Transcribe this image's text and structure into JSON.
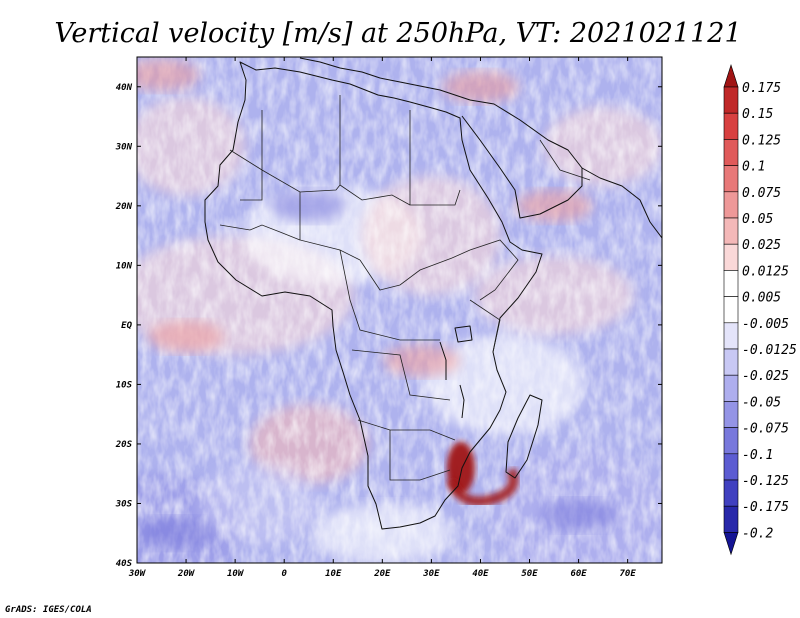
{
  "chart_data": {
    "type": "heatmap",
    "title": "Vertical velocity [m/s] at 250hPa, VT: 2021021121",
    "variable": "Vertical velocity",
    "units": "m/s",
    "level": "250hPa",
    "valid_time": "2021021121",
    "xlim": [
      -30,
      77
    ],
    "ylim": [
      -40,
      45
    ],
    "x_ticks": [
      {
        "value": -30,
        "label": "30W"
      },
      {
        "value": -20,
        "label": "20W"
      },
      {
        "value": -10,
        "label": "10W"
      },
      {
        "value": 0,
        "label": "0"
      },
      {
        "value": 10,
        "label": "10E"
      },
      {
        "value": 20,
        "label": "20E"
      },
      {
        "value": 30,
        "label": "30E"
      },
      {
        "value": 40,
        "label": "40E"
      },
      {
        "value": 50,
        "label": "50E"
      },
      {
        "value": 60,
        "label": "60E"
      },
      {
        "value": 70,
        "label": "70E"
      }
    ],
    "y_ticks": [
      {
        "value": 40,
        "label": "40N"
      },
      {
        "value": 30,
        "label": "30N"
      },
      {
        "value": 20,
        "label": "20N"
      },
      {
        "value": 10,
        "label": "10N"
      },
      {
        "value": 0,
        "label": "EQ"
      },
      {
        "value": -10,
        "label": "10S"
      },
      {
        "value": -20,
        "label": "20S"
      },
      {
        "value": -30,
        "label": "30S"
      },
      {
        "value": -40,
        "label": "40S"
      }
    ],
    "colorbar": {
      "levels": [
        "0.175",
        "0.15",
        "0.125",
        "0.1",
        "0.075",
        "0.05",
        "0.025",
        "0.0125",
        "0.005",
        "-0.005",
        "-0.0125",
        "-0.025",
        "-0.05",
        "-0.075",
        "-0.1",
        "-0.125",
        "-0.175",
        "-0.2"
      ],
      "colors": [
        "#a01414",
        "#c02828",
        "#d84040",
        "#e05a5a",
        "#e87878",
        "#ee9898",
        "#f4b8b8",
        "#fad8d8",
        "#ffffff",
        "#e4e4fa",
        "#c8c8f4",
        "#aeaeee",
        "#9494e6",
        "#7878dc",
        "#5c5cd2",
        "#4040c0",
        "#2828aa",
        "#141494"
      ]
    },
    "features": [
      {
        "name": "strong ascent south-east Africa / Mozambique Channel",
        "lon": 36,
        "lat": -24,
        "sign": "positive"
      },
      {
        "name": "ascent band over Arabian Sea",
        "lon": 55,
        "lat": 20,
        "sign": "positive"
      },
      {
        "name": "ascent over Mediterranean / Levant",
        "lon": 40,
        "lat": 40,
        "sign": "positive"
      },
      {
        "name": "ascent over NW Atlantic",
        "lon": -25,
        "lat": 42,
        "sign": "positive"
      },
      {
        "name": "ascent streak off Angola coast",
        "lon": -20,
        "lat": -2,
        "sign": "positive"
      },
      {
        "name": "ascent band over Congo basin",
        "lon": 28,
        "lat": -6,
        "sign": "positive"
      },
      {
        "name": "subsidence over southern Atlantic",
        "lon": -22,
        "lat": -35,
        "sign": "negative"
      },
      {
        "name": "subsidence over southern Indian Ocean",
        "lon": 60,
        "lat": -32,
        "sign": "negative"
      },
      {
        "name": "subsidence over Sahara",
        "lon": 5,
        "lat": 20,
        "sign": "negative"
      }
    ]
  },
  "footer": {
    "credit": "GrADS: IGES/COLA"
  }
}
